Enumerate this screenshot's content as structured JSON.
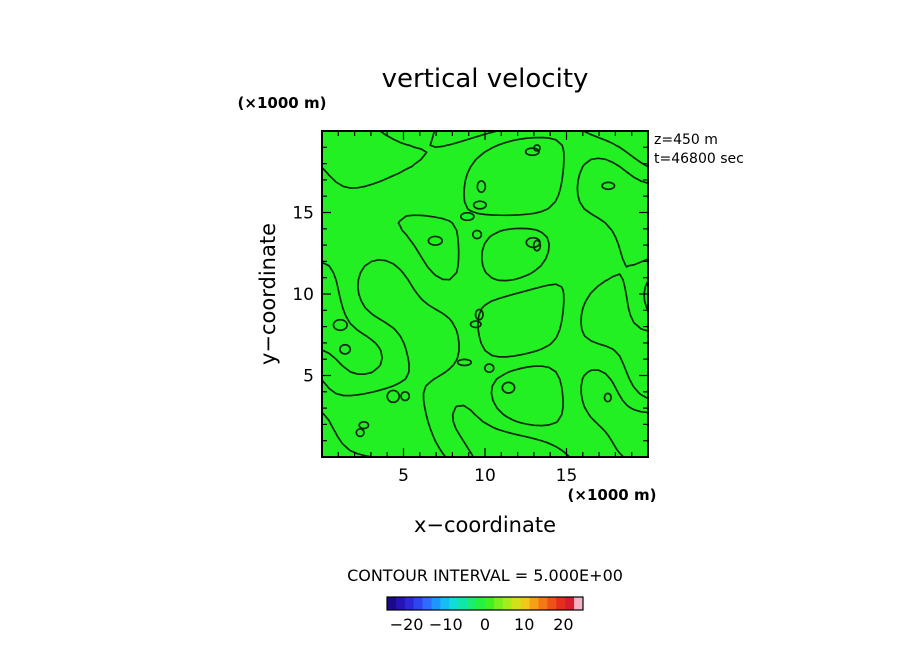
{
  "chart_data": {
    "type": "contour",
    "title": "vertical velocity",
    "xlabel": "x−coordinate",
    "ylabel": "y−coordinate",
    "x_unit": "(×1000 m)",
    "y_unit": "(×1000 m)",
    "x_ticks": [
      5,
      10,
      15
    ],
    "y_ticks": [
      5,
      10,
      15
    ],
    "xlim": [
      0,
      20
    ],
    "ylim": [
      0,
      20
    ],
    "annotations": [
      "z=450 m",
      "t=46800 sec"
    ],
    "contour_interval_label": "CONTOUR INTERVAL = 5.000E+00",
    "colorbar": {
      "ticks": [
        -20,
        -10,
        0,
        10,
        20
      ],
      "tick_labels": [
        "−20",
        "−10",
        "0",
        "10",
        "20"
      ],
      "range": [
        -25,
        25
      ],
      "colors": [
        "#1a0a8a",
        "#2414b4",
        "#2c28d8",
        "#2d46f0",
        "#2d6cff",
        "#1f96ff",
        "#14bef4",
        "#10dcd8",
        "#10e6a8",
        "#1aee70",
        "#26f040",
        "#40f020",
        "#78f020",
        "#a8ec1c",
        "#d2e21a",
        "#f0c81a",
        "#f6a018",
        "#f47818",
        "#ee5018",
        "#e42e1e",
        "#d81c30",
        "#f2b4c4"
      ]
    },
    "field_color": "#22f022",
    "grid": false
  }
}
